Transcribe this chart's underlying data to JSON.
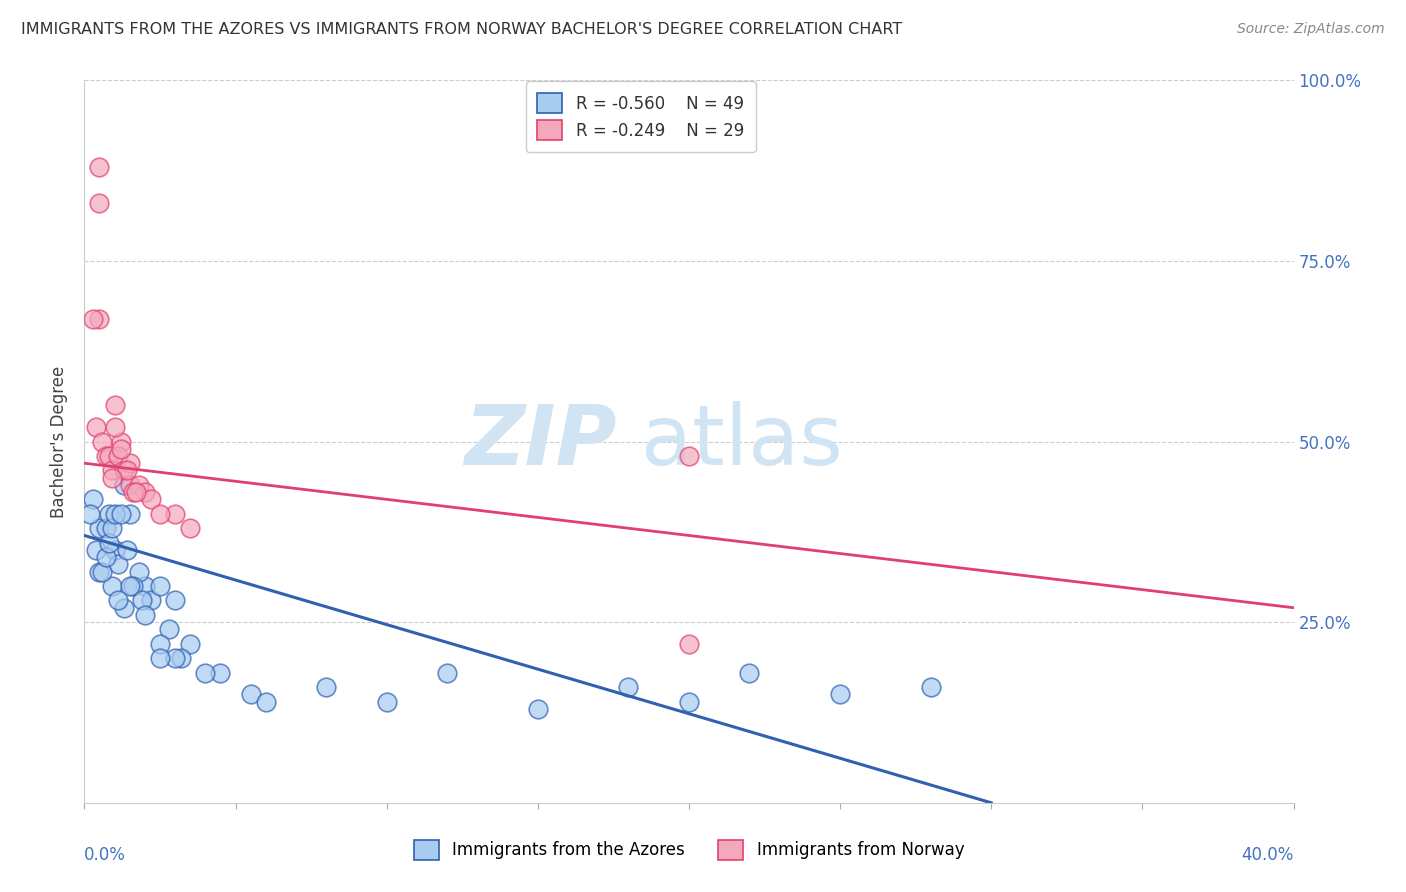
{
  "title": "IMMIGRANTS FROM THE AZORES VS IMMIGRANTS FROM NORWAY BACHELOR'S DEGREE CORRELATION CHART",
  "source": "Source: ZipAtlas.com",
  "ylabel": "Bachelor's Degree",
  "legend_blue_r": "R = -0.560",
  "legend_blue_n": "N = 49",
  "legend_pink_r": "R = -0.249",
  "legend_pink_n": "N = 29",
  "legend_label_blue": "Immigrants from the Azores",
  "legend_label_pink": "Immigrants from Norway",
  "blue_color": "#A8CCF0",
  "pink_color": "#F4A8BC",
  "blue_line_color": "#3060B0",
  "pink_line_color": "#E04070",
  "blue_dots_x": [
    0.5,
    0.5,
    1.0,
    1.5,
    2.0,
    0.3,
    0.7,
    0.9,
    1.1,
    0.4,
    0.8,
    1.3,
    0.2,
    1.8,
    2.2,
    2.5,
    3.0,
    3.5,
    4.5,
    5.5,
    1.6,
    1.9,
    2.8,
    3.2,
    4.0,
    0.6,
    0.7,
    0.8,
    0.9,
    1.0,
    1.2,
    1.4,
    1.5,
    2.0,
    2.5,
    3.0,
    6.0,
    8.0,
    10.0,
    12.0,
    15.0,
    18.0,
    20.0,
    22.0,
    25.0,
    28.0,
    1.1,
    1.3,
    2.5
  ],
  "blue_dots_y": [
    0.32,
    0.38,
    0.35,
    0.4,
    0.3,
    0.42,
    0.38,
    0.3,
    0.33,
    0.35,
    0.4,
    0.27,
    0.4,
    0.32,
    0.28,
    0.3,
    0.28,
    0.22,
    0.18,
    0.15,
    0.3,
    0.28,
    0.24,
    0.2,
    0.18,
    0.32,
    0.34,
    0.36,
    0.38,
    0.4,
    0.4,
    0.35,
    0.3,
    0.26,
    0.22,
    0.2,
    0.14,
    0.16,
    0.14,
    0.18,
    0.13,
    0.16,
    0.14,
    0.18,
    0.15,
    0.16,
    0.28,
    0.44,
    0.2
  ],
  "pink_dots_x": [
    0.5,
    0.5,
    0.5,
    1.0,
    1.2,
    0.3,
    0.4,
    0.6,
    0.7,
    0.8,
    0.9,
    1.1,
    1.3,
    1.5,
    1.5,
    1.8,
    2.0,
    2.2,
    3.0,
    20.0,
    20.0,
    1.0,
    1.4,
    1.6,
    2.5,
    3.5,
    0.9,
    1.2,
    1.7
  ],
  "pink_dots_y": [
    0.88,
    0.83,
    0.67,
    0.55,
    0.5,
    0.67,
    0.52,
    0.5,
    0.48,
    0.48,
    0.46,
    0.48,
    0.46,
    0.47,
    0.44,
    0.44,
    0.43,
    0.42,
    0.4,
    0.48,
    0.22,
    0.52,
    0.46,
    0.43,
    0.4,
    0.38,
    0.45,
    0.49,
    0.43
  ],
  "blue_line": [
    0.0,
    0.3,
    0.37,
    0.0
  ],
  "pink_line": [
    0.0,
    0.4,
    0.47,
    0.27
  ],
  "xlim": [
    0.0,
    0.4
  ],
  "ylim": [
    0.0,
    1.0
  ],
  "yticks": [
    0.0,
    0.25,
    0.5,
    0.75,
    1.0
  ],
  "ytick_labels": [
    "",
    "25.0%",
    "50.0%",
    "75.0%",
    "100.0%"
  ],
  "xtick_left": "0.0%",
  "xtick_right": "40.0%"
}
